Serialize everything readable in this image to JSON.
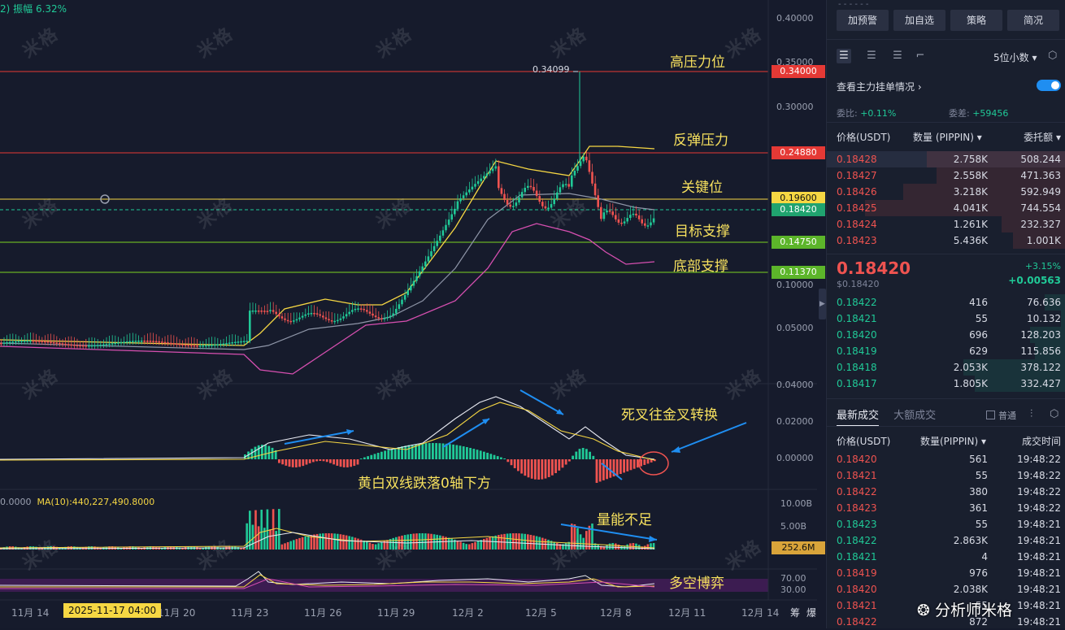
{
  "header": {
    "info": "2) 振幅 6.32%"
  },
  "watermark": "米格",
  "annotations": {
    "high_resistance": "高压力位",
    "rebound_resistance": "反弹压力",
    "key_level": "关键位",
    "target_support": "目标支撑",
    "bottom_support": "底部支撑",
    "macd_note": "黄白双线跌落0轴下方",
    "cross_note": "死叉往金叉转换",
    "volume_note": "量能不足",
    "rsi_note": "多空博弈",
    "high_marker": "0.34099"
  },
  "price_tags": {
    "t1": "0.34000",
    "t2": "0.24880",
    "t3": "0.19600",
    "t4": "0.18420",
    "t5": "0.14750",
    "t6": "0.11370",
    "t7": "252.6M"
  },
  "price_axis": [
    "0.40000",
    "0.35000",
    "0.30000",
    "0.10000",
    "0.05000"
  ],
  "macd_axis": [
    "0.04000",
    "0.02000",
    "0.00000"
  ],
  "volume_axis": [
    "10.00B",
    "5.00B"
  ],
  "rsi_axis": [
    "70.00",
    "30.00"
  ],
  "ma_label": {
    "prefix": "0.0000",
    "text": "MA(10):440,227,490.8000"
  },
  "x_axis": [
    "11月 14",
    "11月 20",
    "11月 23",
    "11月 26",
    "11月 29",
    "12月 2",
    "12月 5",
    "12月 8",
    "12月 11",
    "12月 14"
  ],
  "x_axis_cursor": "2025-11-17 04:00",
  "x_axis_right": [
    "筹",
    "爆"
  ],
  "panel": {
    "dash": "- - - - - -",
    "buttons": [
      "加预警",
      "加自选",
      "策略",
      "简况"
    ],
    "precision": "5位小数",
    "watch_label": "查看主力挂单情况",
    "ratio_label": "委比:",
    "ratio_value": "+0.11%",
    "diff_label": "委差:",
    "diff_value": "+59456",
    "col_price": "价格(USDT)",
    "col_qty": "数量 (PIPPIN)",
    "col_total": "委托额",
    "asks": [
      {
        "p": "0.18428",
        "q": "2.758K",
        "t": "508.244",
        "w": 0.58
      },
      {
        "p": "0.18427",
        "q": "2.558K",
        "t": "471.363",
        "w": 0.54
      },
      {
        "p": "0.18426",
        "q": "3.218K",
        "t": "592.949",
        "w": 0.68
      },
      {
        "p": "0.18425",
        "q": "4.041K",
        "t": "744.554",
        "w": 0.84
      },
      {
        "p": "0.18424",
        "q": "1.261K",
        "t": "232.327",
        "w": 0.27
      },
      {
        "p": "0.18423",
        "q": "5.436K",
        "t": "1.001K",
        "w": 0.22
      }
    ],
    "last": {
      "price": "0.18420",
      "sub": "$0.18420",
      "pct": "+3.15%",
      "chg": "+0.00563"
    },
    "bids": [
      {
        "p": "0.18422",
        "q": "416",
        "t": "76.636",
        "w": 0.09
      },
      {
        "p": "0.18421",
        "q": "55",
        "t": "10.132",
        "w": 0.02
      },
      {
        "p": "0.18420",
        "q": "696",
        "t": "128.203",
        "w": 0.15
      },
      {
        "p": "0.18419",
        "q": "629",
        "t": "115.856",
        "w": 0.13
      },
      {
        "p": "0.18418",
        "q": "2.053K",
        "t": "378.122",
        "w": 0.43
      },
      {
        "p": "0.18417",
        "q": "1.805K",
        "t": "332.427",
        "w": 0.38
      }
    ],
    "tab_latest": "最新成交",
    "tab_large": "大额成交",
    "check_label": "普通",
    "trade_col_price": "价格(USDT)",
    "trade_col_qty": "数量(PIPPIN)",
    "trade_col_time": "成交时间",
    "trades": [
      {
        "p": "0.18420",
        "q": "561",
        "t": "19:48:22",
        "side": "sell"
      },
      {
        "p": "0.18421",
        "q": "55",
        "t": "19:48:22",
        "side": "sell"
      },
      {
        "p": "0.18422",
        "q": "380",
        "t": "19:48:22",
        "side": "sell"
      },
      {
        "p": "0.18423",
        "q": "361",
        "t": "19:48:22",
        "side": "sell"
      },
      {
        "p": "0.18423",
        "q": "55",
        "t": "19:48:21",
        "side": "buy"
      },
      {
        "p": "0.18422",
        "q": "2.863K",
        "t": "19:48:21",
        "side": "buy"
      },
      {
        "p": "0.18421",
        "q": "4",
        "t": "19:48:21",
        "side": "buy"
      },
      {
        "p": "0.18419",
        "q": "976",
        "t": "19:48:21",
        "side": "sell"
      },
      {
        "p": "0.18420",
        "q": "2.038K",
        "t": "19:48:21",
        "side": "sell"
      },
      {
        "p": "0.18421",
        "q": "55",
        "t": "19:48:21",
        "side": "sell"
      },
      {
        "p": "0.18422",
        "q": "872",
        "t": "19:48:21",
        "side": "sell"
      }
    ]
  },
  "brand": "分析师米格",
  "colors": {
    "up": "#20c997",
    "down": "#ef5350",
    "accent": "#f6d743",
    "line_red": "#e53935",
    "line_yellow": "#f6d743",
    "line_green": "#7cd321"
  }
}
